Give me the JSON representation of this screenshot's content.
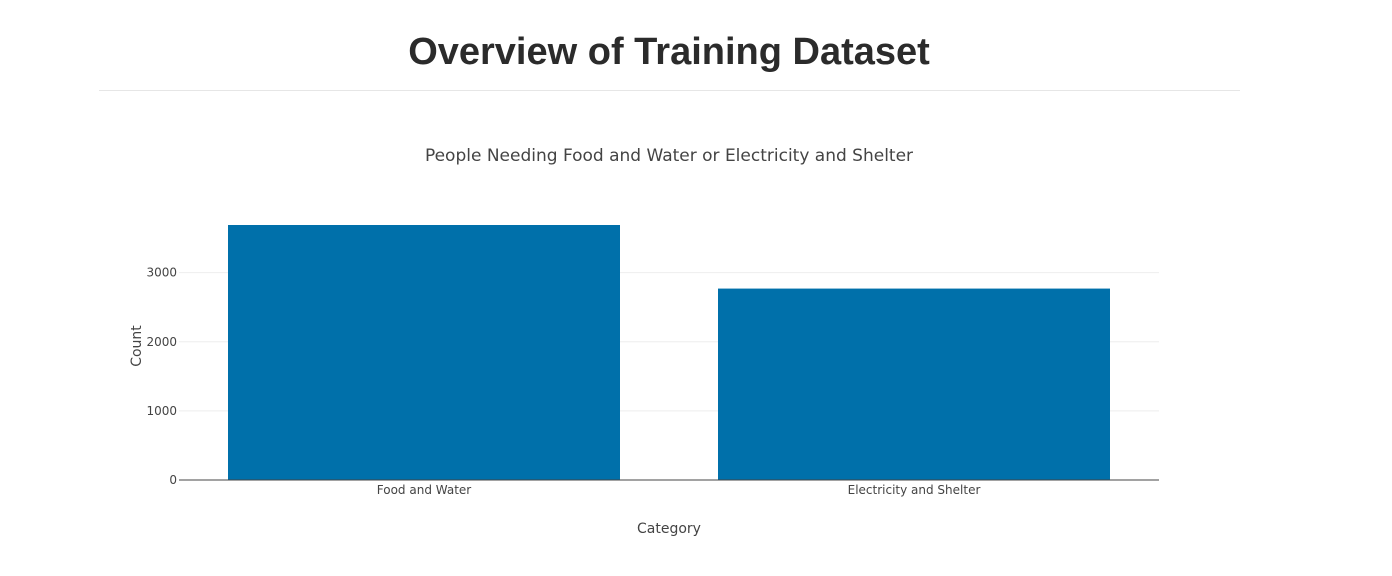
{
  "header": {
    "title": "Overview of Training Dataset"
  },
  "chart_data": {
    "type": "bar",
    "title": "People Needing Food and Water or Electricity and Shelter",
    "categories": [
      "Food and Water",
      "Electricity and Shelter"
    ],
    "values": [
      3690,
      2770
    ],
    "xlabel": "Category",
    "ylabel": "Count",
    "ylim": [
      0,
      3690
    ],
    "yticks": [
      0,
      1000,
      2000,
      3000
    ],
    "grid": true,
    "legend": "none",
    "bar_color": "#0070aa"
  }
}
